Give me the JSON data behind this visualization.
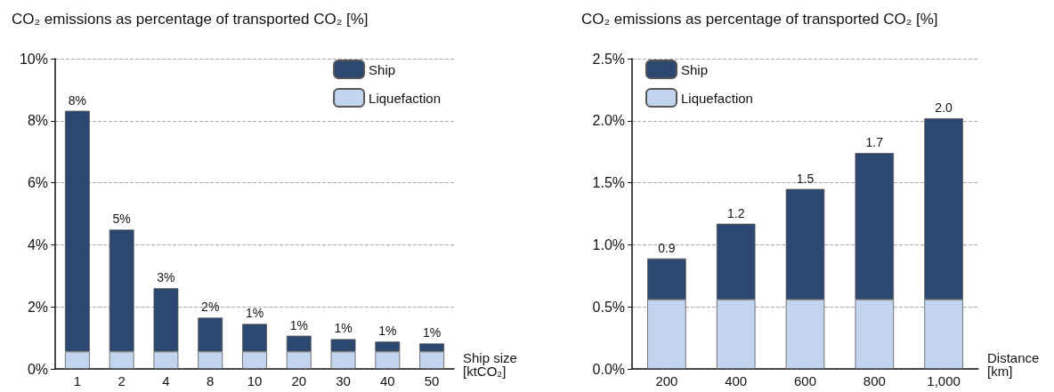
{
  "chart_data": [
    {
      "type": "bar",
      "title": "CO₂ emissions as percentage of transported CO₂ [%]",
      "xlabel": "Ship size\n[ktCO₂]",
      "categories": [
        "1",
        "2",
        "4",
        "8",
        "10",
        "20",
        "30",
        "40",
        "50"
      ],
      "stacked": true,
      "series": [
        {
          "name": "Liquefaction",
          "color": "#c3d5ee",
          "values": [
            0.56,
            0.56,
            0.56,
            0.56,
            0.56,
            0.56,
            0.56,
            0.56,
            0.56
          ]
        },
        {
          "name": "Ship",
          "color": "#2c4770",
          "values": [
            7.76,
            3.93,
            2.04,
            1.09,
            0.89,
            0.51,
            0.4,
            0.32,
            0.26
          ]
        }
      ],
      "totals": [
        "8%",
        "5%",
        "3%",
        "2%",
        "1%",
        "1%",
        "1%",
        "1%",
        "1%"
      ],
      "ylim": [
        0,
        10
      ],
      "yticks": [
        {
          "value": 0,
          "label": "0%"
        },
        {
          "value": 2,
          "label": "2%"
        },
        {
          "value": 4,
          "label": "4%"
        },
        {
          "value": 6,
          "label": "6%"
        },
        {
          "value": 8,
          "label": "8%"
        },
        {
          "value": 10,
          "label": "10%"
        }
      ],
      "grid": "y",
      "legend": "top right"
    },
    {
      "type": "bar",
      "title": "CO₂ emissions as percentage of transported CO₂ [%]",
      "xlabel": "Distance\n[km]",
      "categories": [
        "200",
        "400",
        "600",
        "800",
        "1,000"
      ],
      "stacked": true,
      "series": [
        {
          "name": "Liquefaction",
          "color": "#c3d5ee",
          "values": [
            0.56,
            0.56,
            0.56,
            0.56,
            0.56
          ]
        },
        {
          "name": "Ship",
          "color": "#2c4770",
          "values": [
            0.33,
            0.61,
            0.89,
            1.18,
            1.46
          ]
        }
      ],
      "totals": [
        "0.9",
        "1.2",
        "1.5",
        "1.7",
        "2.0"
      ],
      "ylim": [
        0,
        2.5
      ],
      "yticks": [
        {
          "value": 0,
          "label": "0.0%"
        },
        {
          "value": 0.5,
          "label": "0.5%"
        },
        {
          "value": 1,
          "label": "1.0%"
        },
        {
          "value": 1.5,
          "label": "1.5%"
        },
        {
          "value": 2,
          "label": "2.0%"
        },
        {
          "value": 2.5,
          "label": "2.5%"
        }
      ],
      "grid": "y",
      "legend": "top left"
    }
  ]
}
